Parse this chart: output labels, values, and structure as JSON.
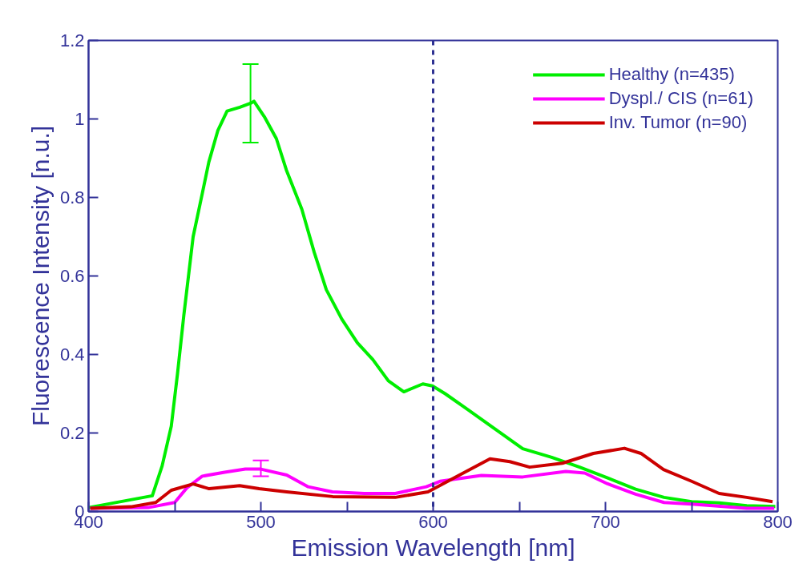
{
  "chart_data": {
    "type": "line",
    "xlabel": "Emission Wavelength [nm]",
    "ylabel": "Fluorescence Intensity [n.u.]",
    "xlim": [
      400,
      800
    ],
    "ylim": [
      0,
      1.2
    ],
    "xticks": [
      400,
      {
        "value": 450,
        "label": null
      },
      500,
      {
        "value": 550,
        "label": null
      },
      600,
      {
        "value": 650,
        "label": null
      },
      700,
      {
        "value": 750,
        "label": null
      },
      800
    ],
    "yticks": [
      0,
      0.2,
      0.4,
      0.6,
      0.8,
      1,
      1.2
    ],
    "grid": false,
    "legend": "top right",
    "marker": "none",
    "line_style": "solid",
    "ref_lines": [
      {
        "axis": "x",
        "value": 600,
        "color": "#2e3192",
        "line_style": "dashed"
      }
    ],
    "series": [
      {
        "name": "Healthy (n=435)",
        "color": "#00ee00",
        "x": [
          400,
          437,
          442.7,
          448,
          451.6,
          455.3,
          460.7,
          466,
          469.8,
          475,
          480.4,
          487.8,
          494,
          496,
          502,
          509,
          514.8,
          523.8,
          531,
          538,
          547,
          556,
          565,
          574,
          583,
          594,
          599.6,
          607,
          620,
          636,
          652,
          668.8,
          685,
          701,
          717.5,
          734,
          750,
          766,
          782,
          798.6
        ],
        "values": [
          0.01,
          0.04,
          0.116,
          0.217,
          0.35,
          0.5,
          0.7,
          0.81,
          0.89,
          0.97,
          1.02,
          1.03,
          1.04,
          1.045,
          1.006,
          0.95,
          0.87,
          0.77,
          0.66,
          0.565,
          0.49,
          0.43,
          0.387,
          0.333,
          0.305,
          0.325,
          0.32,
          0.3,
          0.26,
          0.21,
          0.16,
          0.138,
          0.113,
          0.086,
          0.057,
          0.036,
          0.025,
          0.022,
          0.015,
          0.013
        ],
        "errors": [
          null,
          null,
          null,
          null,
          null,
          null,
          null,
          null,
          null,
          null,
          null,
          null,
          [
            0.94,
            1.14
          ],
          null,
          null,
          null,
          null,
          null,
          null,
          null,
          null,
          null,
          null,
          null,
          null,
          null,
          null,
          null,
          null,
          null,
          null,
          null,
          null,
          null,
          null,
          null,
          null,
          null,
          null,
          null
        ]
      },
      {
        "name": "Dyspl./ CIS (n=61)",
        "color": "#ff00ff",
        "x": [
          401,
          434.6,
          450,
          457,
          466,
          479,
          491,
          500,
          515,
          527.5,
          541.5,
          560,
          578,
          596,
          604,
          628,
          652,
          677,
          688,
          701,
          717.5,
          734,
          750,
          782,
          798
        ],
        "values": [
          0.008,
          0.01,
          0.023,
          0.06,
          0.09,
          0.1,
          0.108,
          0.108,
          0.093,
          0.063,
          0.05,
          0.046,
          0.046,
          0.063,
          0.077,
          0.092,
          0.088,
          0.102,
          0.098,
          0.071,
          0.044,
          0.023,
          0.019,
          0.008,
          0.008
        ],
        "errors": [
          null,
          null,
          null,
          null,
          null,
          null,
          null,
          [
            0.09,
            0.13
          ],
          null,
          null,
          null,
          null,
          null,
          null,
          null,
          null,
          null,
          null,
          null,
          null,
          null,
          null,
          null,
          null,
          null
        ]
      },
      {
        "name": "Inv. Tumor (n=90)",
        "color": "#cc0000",
        "x": [
          401,
          424.6,
          439,
          448,
          460.7,
          470,
          487.7,
          499,
          515,
          541.7,
          578,
          597,
          612,
          633,
          644.5,
          656,
          675,
          693,
          711,
          720.6,
          733.7,
          750,
          766,
          782,
          797
        ],
        "values": [
          0.008,
          0.012,
          0.023,
          0.054,
          0.07,
          0.058,
          0.066,
          0.058,
          0.05,
          0.038,
          0.036,
          0.05,
          0.085,
          0.134,
          0.127,
          0.113,
          0.123,
          0.148,
          0.161,
          0.148,
          0.107,
          0.077,
          0.046,
          0.036,
          0.025
        ]
      }
    ]
  }
}
